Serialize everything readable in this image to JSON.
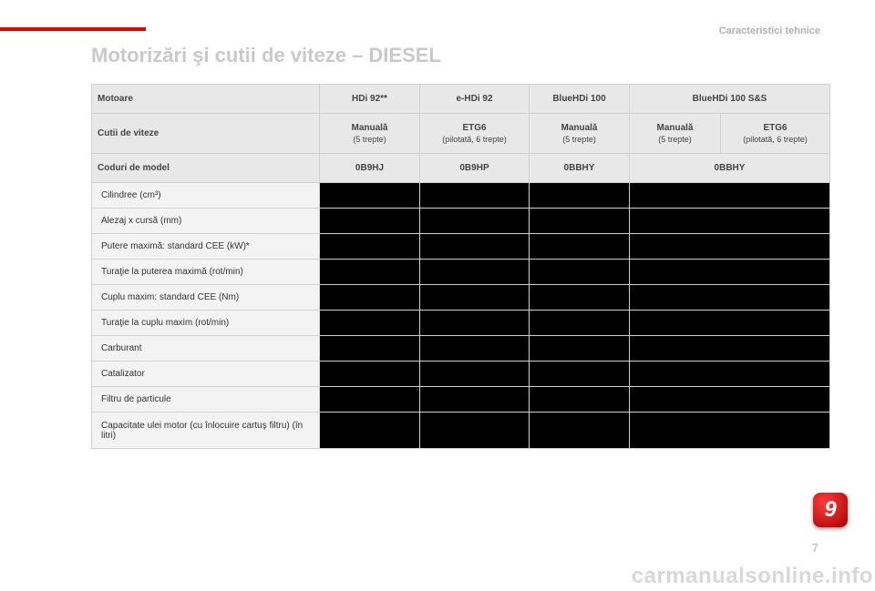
{
  "category_label": "Caracteristici tehnice",
  "title": "Motorizări şi cutii de viteze – DIESEL",
  "columns": {
    "motoare_label": "Motoare",
    "cutii_label": "Cutii de viteze",
    "coduri_label": "Coduri de model",
    "engines": [
      "HDi 92**",
      "e-HDi 92",
      "BlueHDi 100",
      "BlueHDi 100 S&S"
    ],
    "gearboxes": [
      {
        "name": "Manuală",
        "sub": "(5 trepte)"
      },
      {
        "name": "ETG6",
        "sub": "(pilotată, 6 trepte)"
      },
      {
        "name": "Manuală",
        "sub": "(5 trepte)"
      },
      {
        "name": "Manuală",
        "sub": "(5 trepte)"
      },
      {
        "name": "ETG6",
        "sub": "(pilotată, 6 trepte)"
      }
    ],
    "codes": [
      "0B9HJ",
      "0B9HP",
      "0BBHY",
      "0BBHY"
    ]
  },
  "row_labels": [
    "Cilindree (cm³)",
    "Alezaj x cursă (mm)",
    "Putere maximă: standard CEE (kW)*",
    "Turaţie la puterea maximă (rot/min)",
    "Cuplu maxim: standard CEE (Nm)",
    "Turaţie la cuplu maxim (rot/min)",
    "Carburant",
    "Catalizator",
    "Filtru de particule",
    "Capacitate ulei motor (cu înlocuire cartuş filtru) (în litri)"
  ],
  "chapter_number": "9",
  "page_number": "7",
  "watermark": "carmanualsonline.info",
  "colors": {
    "accent_red": "#e60000",
    "heading_gray": "#c9c9c9",
    "header_bg": "#e8e8e8",
    "label_bg": "#f3f3f3",
    "border": "#d0d0d0",
    "blackout": "#000000",
    "badge_gradient_light": "#ff3b3b",
    "badge_gradient_dark": "#a80000"
  },
  "data_cell_spans": [
    {
      "cells": [
        1,
        1,
        1,
        1
      ],
      "span_last": 2
    },
    {
      "cells": [
        1,
        1,
        1,
        1
      ],
      "span_last": 2
    },
    {
      "cells": [
        1,
        1,
        1,
        1
      ],
      "span_last": 2
    },
    {
      "cells": [
        1,
        1,
        1,
        1
      ],
      "span_last": 2
    },
    {
      "cells": [
        1,
        1,
        1,
        1
      ],
      "span_last": 2
    },
    {
      "cells": [
        1,
        1,
        1,
        1
      ],
      "span_last": 2
    },
    {
      "cells": [
        1,
        1,
        1,
        1
      ],
      "span_last": 2
    },
    {
      "cells": [
        1,
        1,
        1,
        1
      ],
      "span_last": 2
    },
    {
      "cells": [
        1,
        1,
        1,
        1
      ],
      "span_last": 2
    },
    {
      "cells": [
        1,
        1,
        1,
        1
      ],
      "span_last": 2
    }
  ]
}
